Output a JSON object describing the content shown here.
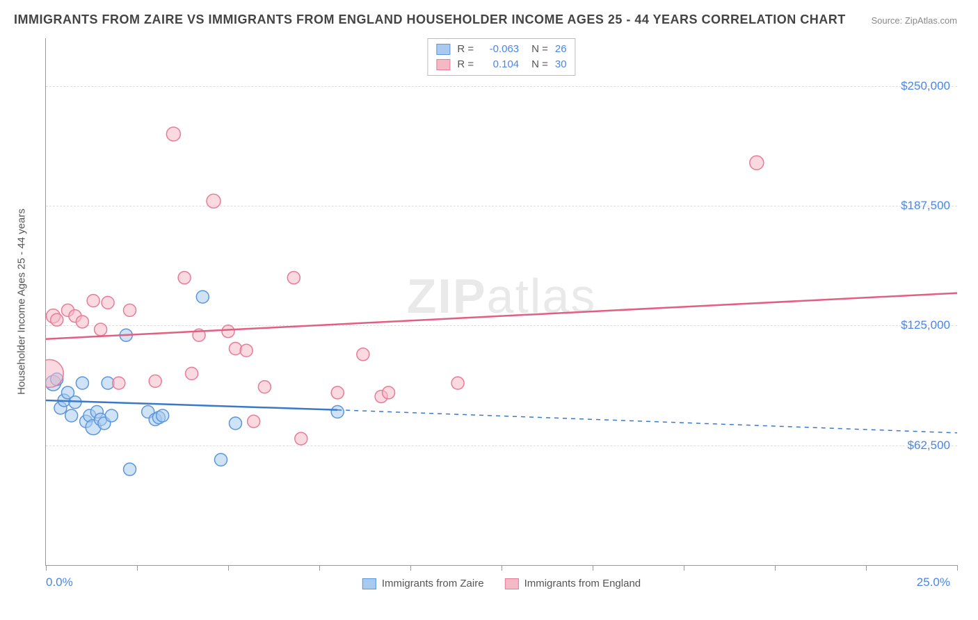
{
  "title": "IMMIGRANTS FROM ZAIRE VS IMMIGRANTS FROM ENGLAND HOUSEHOLDER INCOME AGES 25 - 44 YEARS CORRELATION CHART",
  "source": "Source: ZipAtlas.com",
  "ylabel": "Householder Income Ages 25 - 44 years",
  "watermark_a": "ZIP",
  "watermark_b": "atlas",
  "chart": {
    "type": "scatter",
    "xlim": [
      0,
      25
    ],
    "ylim": [
      0,
      275000
    ],
    "yticks": [
      62500,
      125000,
      187500,
      250000
    ],
    "ytick_labels": [
      "$62,500",
      "$125,000",
      "$187,500",
      "$250,000"
    ],
    "xticks": [
      0,
      2.5,
      5,
      7.5,
      10,
      12.5,
      15,
      17.5,
      20,
      22.5,
      25
    ],
    "xmin_label": "0.0%",
    "xmax_label": "25.0%",
    "grid_color": "#dddddd",
    "axis_color": "#999999",
    "background_color": "#ffffff",
    "series": [
      {
        "name": "Immigrants from Zaire",
        "color_fill": "#a8caef",
        "color_stroke": "#5a96db",
        "fill_opacity": 0.55,
        "marker_r": 9,
        "R": "-0.063",
        "N": "26",
        "trend": {
          "solid": [
            [
              0,
              86000
            ],
            [
              8,
              81000
            ]
          ],
          "dashed": [
            [
              8,
              81000
            ],
            [
              25,
              69000
            ]
          ],
          "stroke": "#3a78c9",
          "width": 2.5
        },
        "points": [
          [
            0.2,
            95000,
            11
          ],
          [
            0.3,
            97000,
            9
          ],
          [
            0.4,
            82000,
            9
          ],
          [
            0.5,
            86000,
            9
          ],
          [
            0.6,
            90000,
            9
          ],
          [
            0.7,
            78000,
            9
          ],
          [
            0.8,
            85000,
            9
          ],
          [
            1.0,
            95000,
            9
          ],
          [
            1.1,
            75000,
            9
          ],
          [
            1.2,
            78000,
            9
          ],
          [
            1.3,
            72000,
            11
          ],
          [
            1.4,
            80000,
            9
          ],
          [
            1.5,
            76000,
            9
          ],
          [
            1.6,
            74000,
            9
          ],
          [
            1.7,
            95000,
            9
          ],
          [
            1.8,
            78000,
            9
          ],
          [
            2.2,
            120000,
            9
          ],
          [
            2.3,
            50000,
            9
          ],
          [
            2.8,
            80000,
            9
          ],
          [
            3.0,
            76000,
            9
          ],
          [
            3.1,
            77000,
            9
          ],
          [
            3.2,
            78000,
            9
          ],
          [
            4.3,
            140000,
            9
          ],
          [
            4.8,
            55000,
            9
          ],
          [
            5.2,
            74000,
            9
          ],
          [
            8.0,
            80000,
            9
          ]
        ]
      },
      {
        "name": "Immigrants from England",
        "color_fill": "#f5b9c6",
        "color_stroke": "#e87b97",
        "fill_opacity": 0.55,
        "marker_r": 9,
        "R": "0.104",
        "N": "30",
        "trend": {
          "solid": [
            [
              0,
              118000
            ],
            [
              25,
              142000
            ]
          ],
          "dashed": null,
          "stroke": "#e25e82",
          "width": 2.5
        },
        "points": [
          [
            0.1,
            100000,
            20
          ],
          [
            0.2,
            130000,
            10
          ],
          [
            0.3,
            128000,
            9
          ],
          [
            0.6,
            133000,
            9
          ],
          [
            0.8,
            130000,
            9
          ],
          [
            1.0,
            127000,
            9
          ],
          [
            1.3,
            138000,
            9
          ],
          [
            1.5,
            123000,
            9
          ],
          [
            1.7,
            137000,
            9
          ],
          [
            2.0,
            95000,
            9
          ],
          [
            2.3,
            133000,
            9
          ],
          [
            3.0,
            96000,
            9
          ],
          [
            3.5,
            225000,
            10
          ],
          [
            3.8,
            150000,
            9
          ],
          [
            4.0,
            100000,
            9
          ],
          [
            4.2,
            120000,
            9
          ],
          [
            4.6,
            190000,
            10
          ],
          [
            5.0,
            122000,
            9
          ],
          [
            5.2,
            113000,
            9
          ],
          [
            5.5,
            112000,
            9
          ],
          [
            5.7,
            75000,
            9
          ],
          [
            6.0,
            93000,
            9
          ],
          [
            6.8,
            150000,
            9
          ],
          [
            7.0,
            66000,
            9
          ],
          [
            8.0,
            90000,
            9
          ],
          [
            8.7,
            110000,
            9
          ],
          [
            9.2,
            88000,
            9
          ],
          [
            9.4,
            90000,
            9
          ],
          [
            11.3,
            95000,
            9
          ],
          [
            19.5,
            210000,
            10
          ]
        ]
      }
    ]
  }
}
